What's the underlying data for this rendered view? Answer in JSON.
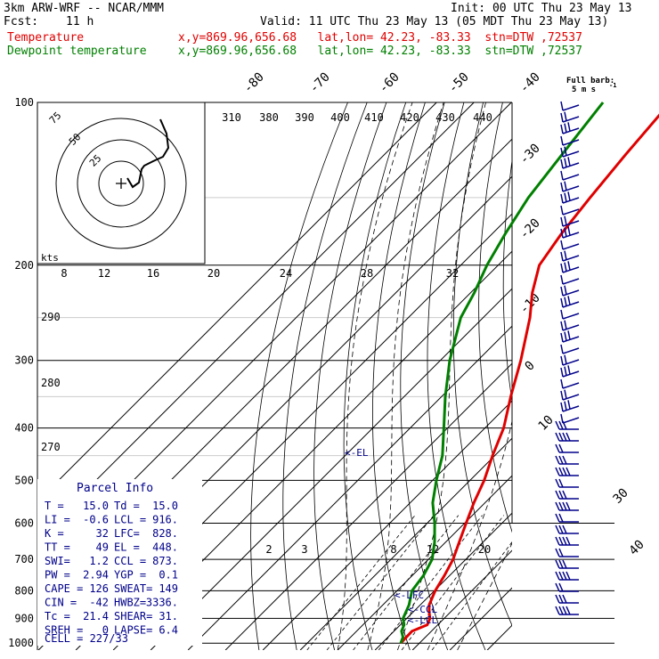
{
  "header": {
    "model": "3km ARW-WRF -- NCAR/MMM",
    "init": "Init: 00 UTC Thu 23 May 13",
    "fcst_label": "Fcst:",
    "fcst_value": "11 h",
    "valid": "Valid: 11 UTC Thu 23 May 13 (05 MDT Thu 23 May 13)",
    "temp_name": "Temperature",
    "temp_info": "x,y=869.96,656.68   lat,lon= 42.23, -83.33  stn=DTW ,72537",
    "dew_name": "Dewpoint temperature",
    "dew_info": "x,y=869.96,656.68   lat,lon= 42.23, -83.33  stn=DTW ,72537"
  },
  "barb_legend": {
    "line1": "Full barb:",
    "line2": "5 m s",
    "exp": "-1"
  },
  "hodograph": {
    "rings": [
      "75",
      "50",
      "25"
    ],
    "kts_label": "kts"
  },
  "parcel_info": {
    "title": "Parcel Info",
    "rows": [
      [
        "T  =",
        "15.0",
        "Td =",
        "15.0"
      ],
      [
        "LI =",
        "-0.6",
        "LCL =",
        "916."
      ],
      [
        "K  =",
        "32",
        "LFC=",
        "828."
      ],
      [
        "TT =",
        "49",
        "EL =",
        "448."
      ],
      [
        "SWI=",
        "1.2",
        "CCL =",
        "873."
      ],
      [
        "PW =",
        "2.94",
        "YGP =",
        "0.1"
      ],
      [
        "CAPE =",
        "126",
        "SWEAT=",
        "149"
      ],
      [
        "CIN =",
        "-42",
        "HWBZ=",
        "3336."
      ],
      [
        "Tc =",
        "21.4",
        "SHEAR=",
        "31."
      ],
      [
        "SREH =",
        "0",
        "LAPSE=",
        "6.4"
      ]
    ],
    "cell": "CELL = 227/33"
  },
  "level_markers": {
    "el": "<-EL",
    "lfc": "<-LFC",
    "ccl": "<-CCL",
    "lcl": "<-LCL"
  },
  "chart_data": {
    "type": "line",
    "title": "",
    "y_axis": {
      "scale": "log",
      "range": [
        1000,
        100
      ],
      "ticks": [
        100,
        200,
        300,
        400,
        500,
        600,
        700,
        800,
        900,
        1000
      ]
    },
    "isotherm_labels": [
      "-80",
      "-70",
      "-60",
      "-50",
      "-40",
      "-30",
      "-20",
      "-10",
      "0",
      "10",
      "30",
      "40"
    ],
    "theta_labels_top": [
      "310",
      "380",
      "390",
      "400",
      "410",
      "420",
      "430",
      "440"
    ],
    "theta_labels_left": [
      "290",
      "280",
      "270"
    ],
    "mixing_ratio_labels_top": [
      "8",
      "12",
      "16",
      "20",
      "24",
      "28",
      "32"
    ],
    "mixing_ratio_labels_bottom": [
      "2",
      "3",
      "8",
      "12",
      "20"
    ],
    "series": [
      {
        "name": "Temperature",
        "color": "#e00000",
        "points": [
          [
            1000,
            15.0
          ],
          [
            950,
            14.8
          ],
          [
            925,
            17.2
          ],
          [
            900,
            16.2
          ],
          [
            875,
            14.2
          ],
          [
            850,
            12.4
          ],
          [
            800,
            10.2
          ],
          [
            750,
            8.6
          ],
          [
            700,
            6.6
          ],
          [
            650,
            3.6
          ],
          [
            600,
            0.4
          ],
          [
            550,
            -3.0
          ],
          [
            500,
            -6.2
          ],
          [
            450,
            -10.6
          ],
          [
            400,
            -15.0
          ],
          [
            350,
            -21.5
          ],
          [
            300,
            -28.5
          ],
          [
            250,
            -37.5
          ],
          [
            225,
            -43.5
          ],
          [
            200,
            -49.0
          ],
          [
            175,
            -51.5
          ],
          [
            150,
            -53.5
          ],
          [
            125,
            -55.5
          ],
          [
            100,
            -57.5
          ]
        ]
      },
      {
        "name": "Dewpoint temperature",
        "color": "#008000",
        "points": [
          [
            1000,
            15.0
          ],
          [
            975,
            14.0
          ],
          [
            950,
            12.0
          ],
          [
            925,
            11.0
          ],
          [
            900,
            9.0
          ],
          [
            850,
            7.0
          ],
          [
            800,
            4.0
          ],
          [
            750,
            3.0
          ],
          [
            700,
            1.0
          ],
          [
            650,
            -3.0
          ],
          [
            600,
            -8.0
          ],
          [
            550,
            -14.0
          ],
          [
            500,
            -19.0
          ],
          [
            450,
            -24.0
          ],
          [
            400,
            -31.0
          ],
          [
            350,
            -39.0
          ],
          [
            300,
            -47.5
          ],
          [
            250,
            -56.0
          ],
          [
            225,
            -59.0
          ],
          [
            200,
            -63.0
          ],
          [
            175,
            -66.5
          ],
          [
            150,
            -70.0
          ],
          [
            125,
            -72.5
          ],
          [
            100,
            -75.5
          ]
        ]
      }
    ]
  }
}
